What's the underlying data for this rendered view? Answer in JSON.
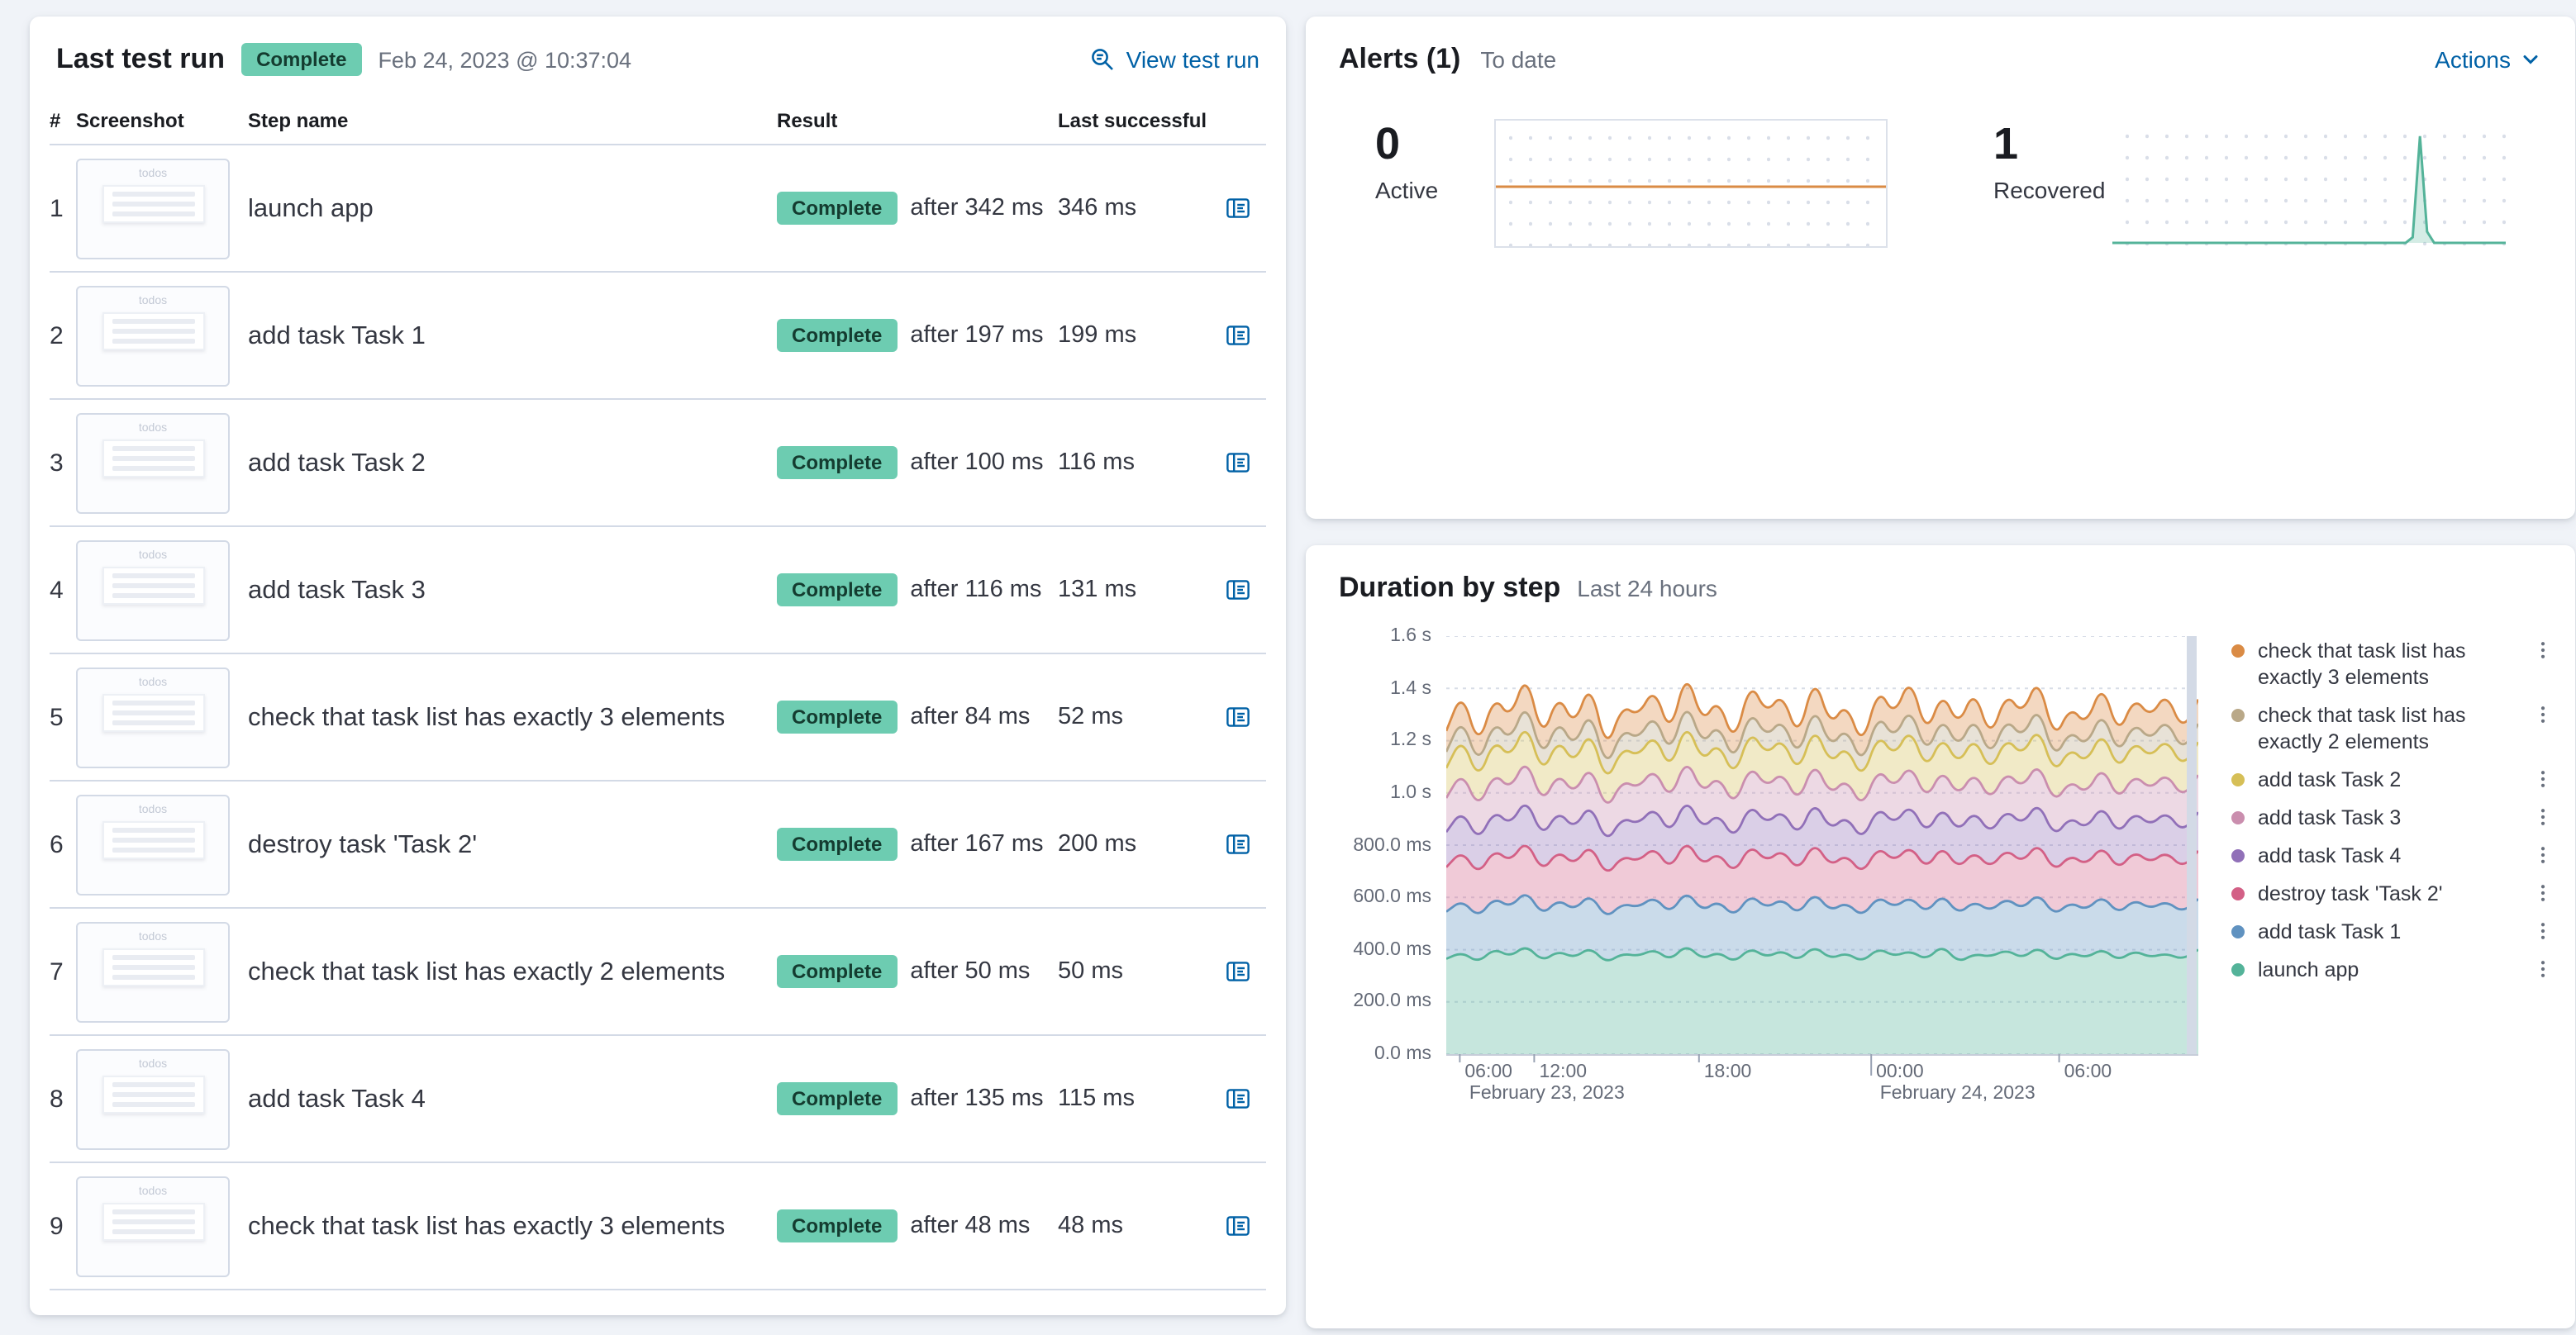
{
  "colors": {
    "link": "#0061A6",
    "badge_bg": "#6DCCB1",
    "badge_text": "#143C30",
    "page_bg": "#F0F3F8",
    "muted": "#69707D",
    "text": "#343741",
    "border": "#D3DAE6"
  },
  "last_test_run": {
    "title": "Last test run",
    "status_badge": "Complete",
    "timestamp": "Feb 24, 2023 @ 10:37:04",
    "view_link": "View test run",
    "columns": [
      "#",
      "Screenshot",
      "Step name",
      "Result",
      "Last successful"
    ],
    "thumbnail_label": "todos",
    "rows": [
      {
        "num": "1",
        "step": "launch app",
        "badge": "Complete",
        "after": "after 342 ms",
        "last_successful": "346 ms"
      },
      {
        "num": "2",
        "step": "add task Task 1",
        "badge": "Complete",
        "after": "after 197 ms",
        "last_successful": "199 ms"
      },
      {
        "num": "3",
        "step": "add task Task 2",
        "badge": "Complete",
        "after": "after 100 ms",
        "last_successful": "116 ms"
      },
      {
        "num": "4",
        "step": "add task Task 3",
        "badge": "Complete",
        "after": "after 116 ms",
        "last_successful": "131 ms"
      },
      {
        "num": "5",
        "step": "check that task list has exactly 3 elements",
        "badge": "Complete",
        "after": "after 84 ms",
        "last_successful": "52 ms"
      },
      {
        "num": "6",
        "step": "destroy task 'Task 2'",
        "badge": "Complete",
        "after": "after 167 ms",
        "last_successful": "200 ms"
      },
      {
        "num": "7",
        "step": "check that task list has exactly 2 elements",
        "badge": "Complete",
        "after": "after 50 ms",
        "last_successful": "50 ms"
      },
      {
        "num": "8",
        "step": "add task Task 4",
        "badge": "Complete",
        "after": "after 135 ms",
        "last_successful": "115 ms"
      },
      {
        "num": "9",
        "step": "check that task list has exactly 3 elements",
        "badge": "Complete",
        "after": "after 48 ms",
        "last_successful": "48 ms"
      }
    ]
  },
  "alerts": {
    "title": "Alerts (1)",
    "subtitle": "To date",
    "actions_label": "Actions",
    "stats": [
      {
        "value": "0",
        "label": "Active",
        "chart_data": {
          "type": "line",
          "color": "#DA8B45",
          "ylim": [
            0,
            2
          ],
          "values": [
            1,
            1
          ]
        }
      },
      {
        "value": "1",
        "label": "Recovered",
        "chart_data": {
          "type": "area",
          "color": "#54B399",
          "fill": "rgba(84,179,153,0.25)",
          "ylim": [
            0,
            1
          ],
          "values": [
            0,
            0,
            0,
            0,
            0,
            0,
            0,
            0,
            0,
            0,
            0,
            0,
            0,
            0,
            0,
            0,
            0,
            0,
            0,
            0,
            0,
            0,
            0,
            0,
            0,
            0,
            0,
            0,
            0,
            0,
            0,
            0,
            0,
            0,
            0,
            0,
            0,
            0,
            0,
            0,
            0,
            0,
            0.05,
            0.95,
            0.1,
            0,
            0,
            0,
            0,
            0,
            0,
            0,
            0,
            0,
            0,
            0
          ]
        }
      }
    ]
  },
  "duration_by_step": {
    "title": "Duration by step",
    "subtitle": "Last 24 hours",
    "chart_data": {
      "type": "area",
      "stacked": true,
      "unit": "ms",
      "ylim": [
        0,
        1600
      ],
      "grid": true,
      "legend_position": "right",
      "y_ticks": [
        {
          "label": "1.6 s",
          "value": 1600
        },
        {
          "label": "1.4 s",
          "value": 1400
        },
        {
          "label": "1.2 s",
          "value": 1200
        },
        {
          "label": "1.0 s",
          "value": 1000
        },
        {
          "label": "800.0 ms",
          "value": 800
        },
        {
          "label": "600.0 ms",
          "value": 600
        },
        {
          "label": "400.0 ms",
          "value": 400
        },
        {
          "label": "200.0 ms",
          "value": 200
        },
        {
          "label": "0.0 ms",
          "value": 0
        }
      ],
      "x_ticks": [
        {
          "label": "06:00",
          "f": 0.018
        },
        {
          "label": "12:00",
          "f": 0.117
        },
        {
          "label": "18:00",
          "f": 0.336
        },
        {
          "label": "00:00",
          "f": 0.565
        },
        {
          "label": "06:00",
          "f": 0.815
        }
      ],
      "date_labels": [
        {
          "label": "February 23, 2023",
          "f": 0.024
        },
        {
          "label": "February 24, 2023",
          "f": 0.57
        }
      ],
      "series": [
        {
          "name": "check that task list has exactly 3 elements",
          "color": "#DA8B45",
          "values": [
            80,
            100,
            72,
            95,
            85,
            110,
            75,
            98,
            82,
            105,
            70,
            92,
            88,
            102,
            76,
            115,
            84,
            96,
            72,
            108,
            90,
            98,
            74,
            112,
            82,
            94,
            70,
            100,
            88,
            115,
            76,
            96,
            84,
            104,
            72,
            98,
            90,
            110,
            74,
            90,
            82,
            106,
            76,
            96,
            88,
            100,
            78,
            94
          ]
        },
        {
          "name": "check that task list has exactly 2 elements",
          "color": "#B9A888",
          "values": [
            62,
            75,
            56,
            72,
            65,
            80,
            58,
            74,
            63,
            77,
            54,
            70,
            66,
            76,
            60,
            82,
            64,
            72,
            56,
            78,
            68,
            74,
            58,
            80,
            63,
            71,
            55,
            76,
            66,
            82,
            58,
            72,
            64,
            78,
            55,
            74,
            68,
            80,
            57,
            68,
            63,
            78,
            59,
            72,
            66,
            76,
            61,
            70
          ]
        },
        {
          "name": "add task Task 2",
          "color": "#D6BF57",
          "values": [
            115,
            132,
            108,
            128,
            120,
            138,
            112,
            130,
            116,
            134,
            106,
            126,
            122,
            132,
            114,
            138,
            120,
            128,
            110,
            134,
            124,
            130,
            112,
            136,
            118,
            126,
            108,
            132,
            122,
            138,
            114,
            128,
            120,
            134,
            110,
            130,
            124,
            136,
            112,
            124,
            118,
            134,
            114,
            128,
            122,
            132,
            116,
            126
          ]
        },
        {
          "name": "add task Task 3",
          "color": "#CA8EAE",
          "values": [
            130,
            148,
            124,
            144,
            136,
            154,
            128,
            146,
            132,
            150,
            122,
            142,
            138,
            148,
            130,
            154,
            136,
            144,
            126,
            150,
            140,
            146,
            128,
            152,
            134,
            142,
            124,
            148,
            138,
            154,
            130,
            144,
            136,
            150,
            126,
            146,
            140,
            152,
            128,
            140,
            134,
            150,
            130,
            144,
            138,
            148,
            132,
            142
          ]
        },
        {
          "name": "add task Task 4",
          "color": "#9170B8",
          "values": [
            135,
            155,
            128,
            150,
            140,
            160,
            132,
            152,
            138,
            156,
            126,
            148,
            142,
            154,
            134,
            160,
            140,
            150,
            130,
            156,
            144,
            152,
            132,
            158,
            138,
            148,
            128,
            154,
            142,
            160,
            134,
            150,
            140,
            156,
            130,
            152,
            144,
            158,
            132,
            146,
            138,
            156,
            134,
            150,
            142,
            154,
            136,
            148
          ]
        },
        {
          "name": "destroy task 'Task 2'",
          "color": "#D36086",
          "values": [
            170,
            190,
            162,
            185,
            175,
            195,
            165,
            188,
            172,
            192,
            160,
            182,
            176,
            190,
            168,
            196,
            174,
            186,
            164,
            192,
            178,
            188,
            166,
            194,
            172,
            184,
            162,
            190,
            176,
            196,
            168,
            186,
            174,
            192,
            164,
            188,
            178,
            194,
            166,
            182,
            172,
            192,
            168,
            186,
            176,
            190,
            170,
            184
          ]
        },
        {
          "name": "add task Task 1",
          "color": "#6092C0",
          "values": [
            180,
            200,
            172,
            195,
            188,
            210,
            175,
            198,
            182,
            205,
            170,
            192,
            186,
            202,
            178,
            208,
            184,
            196,
            174,
            204,
            188,
            198,
            176,
            206,
            182,
            194,
            172,
            200,
            186,
            208,
            178,
            196,
            184,
            202,
            174,
            198,
            188,
            206,
            176,
            192,
            182,
            204,
            178,
            196,
            186,
            200,
            180,
            194
          ]
        },
        {
          "name": "launch app",
          "color": "#54B399",
          "values": [
            365,
            390,
            350,
            405,
            372,
            418,
            355,
            395,
            368,
            410,
            348,
            385,
            375,
            402,
            358,
            420,
            362,
            392,
            350,
            408,
            370,
            398,
            356,
            415,
            364,
            388,
            352,
            406,
            374,
            396,
            360,
            418,
            350,
            384,
            372,
            400,
            366,
            412,
            354,
            390,
            368,
            404,
            358,
            396,
            370,
            386,
            362,
            400
          ]
        }
      ]
    }
  }
}
